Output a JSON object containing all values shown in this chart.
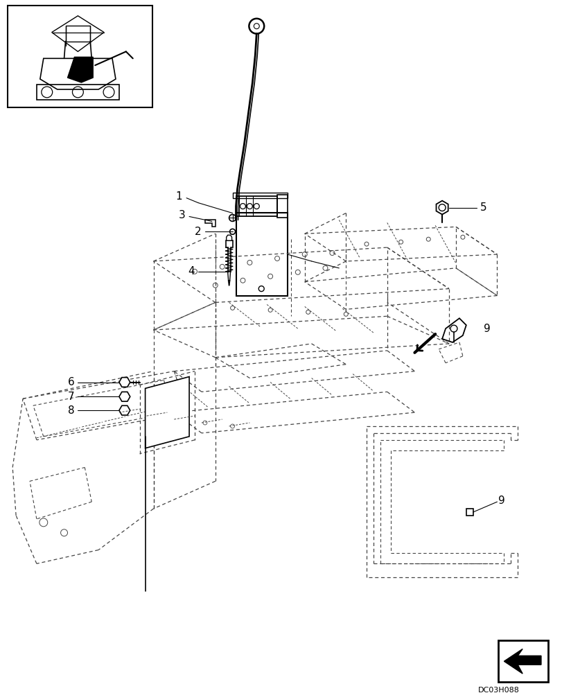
{
  "background_color": "#ffffff",
  "line_color": "#000000",
  "dashed_color": "#444444",
  "figure_width": 8.12,
  "figure_height": 10.0,
  "dpi": 100,
  "watermark_text": "DC03H088"
}
